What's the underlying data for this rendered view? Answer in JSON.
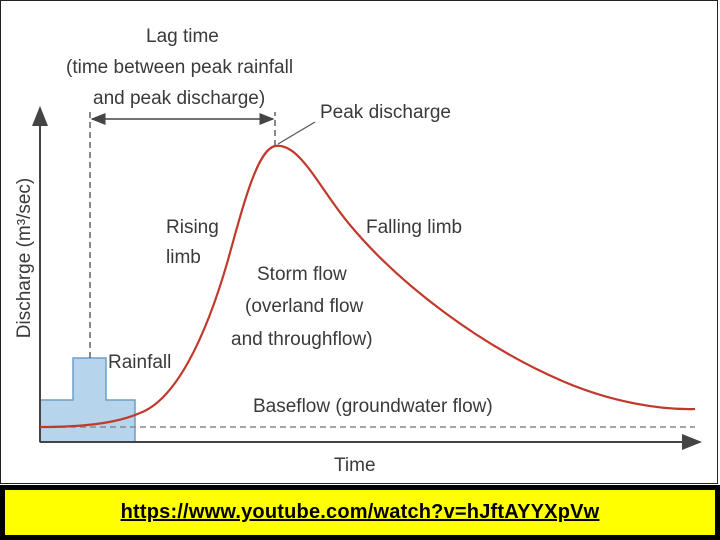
{
  "diagram": {
    "y_axis_label": "Discharge (m³/sec)",
    "x_axis_label": "Time",
    "lag_time_lines": [
      "Lag time",
      "(time between peak rainfall",
      "and peak discharge)"
    ],
    "peak_discharge": "Peak discharge",
    "rising_limb_lines": [
      "Rising",
      "limb"
    ],
    "falling_limb": "Falling limb",
    "storm_flow_lines": [
      "Storm flow",
      "(overland flow",
      "and throughflow)"
    ],
    "rainfall": "Rainfall",
    "baseflow": "Baseflow (groundwater flow)",
    "colors": {
      "hydrograph_curve": "#c0392b",
      "rainfall_fill": "#b6d4ec",
      "rainfall_stroke": "#6f9fc8",
      "axis": "#444444",
      "baseflow_line": "#888888"
    }
  },
  "caption": {
    "link_text": "https://www.youtube.com/watch?v=hJftAYYXpVw",
    "background": "#ffff00"
  }
}
